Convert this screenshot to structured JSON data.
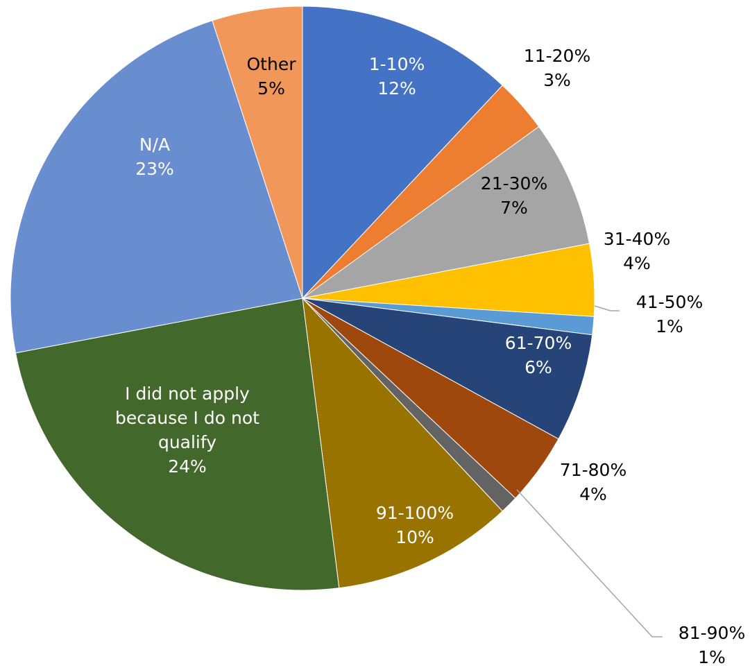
{
  "chart_data": {
    "type": "pie",
    "categories": [
      "1-10%",
      "11-20%",
      "21-30%",
      "31-40%",
      "41-50%",
      "61-70%",
      "71-80%",
      "81-90%",
      "91-100%",
      "I did not apply because I do not qualify",
      "N/A",
      "Other"
    ],
    "values": [
      12,
      3,
      7,
      4,
      1,
      6,
      4,
      1,
      10,
      24,
      23,
      5
    ],
    "value_labels": [
      "12%",
      "3%",
      "7%",
      "4%",
      "1%",
      "6%",
      "4%",
      "1%",
      "10%",
      "24%",
      "23%",
      "5%"
    ],
    "colors": [
      "#4472c4",
      "#ed7d31",
      "#a5a5a5",
      "#ffc000",
      "#5b9bd5",
      "#264478",
      "#9e480e",
      "#636363",
      "#997300",
      "#43682b",
      "#698ed0",
      "#f1975a"
    ]
  }
}
